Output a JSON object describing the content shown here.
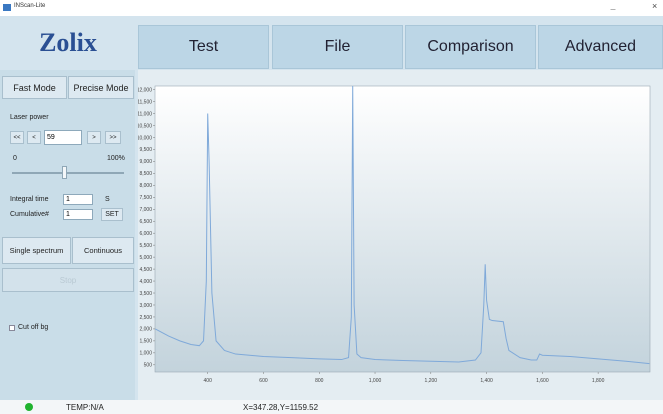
{
  "window": {
    "title": "INScan-Lite"
  },
  "logo": "Zolix",
  "tabs": [
    "Test",
    "File",
    "Comparison",
    "Advanced"
  ],
  "sidebar": {
    "modes": [
      "Fast Mode",
      "Precise Mode"
    ],
    "laser_power": {
      "label": "Laser power",
      "buttons": [
        "<<",
        "<",
        ">",
        ">>"
      ],
      "value": 59,
      "min_label": "0",
      "max_label": "100%"
    },
    "integral_time": {
      "label": "Integral time",
      "value": 1,
      "unit": "S"
    },
    "cumulative": {
      "label": "Cumulative#",
      "value": 1,
      "button": "SET"
    },
    "acquire": [
      "Single spectrum",
      "Continuous"
    ],
    "stop": "Stop",
    "cut_off_bg": "Cut off bg"
  },
  "status": {
    "temp": "TEMP:N/A",
    "cursor": "X=347.28,Y=1159.52"
  },
  "chart_data": {
    "type": "line",
    "color": "#7fa9d9",
    "x": [
      212,
      260,
      300,
      340,
      370,
      385,
      395,
      400,
      405,
      415,
      430,
      460,
      500,
      600,
      700,
      800,
      880,
      905,
      915,
      920,
      925,
      935,
      950,
      1000,
      1100,
      1200,
      1300,
      1360,
      1380,
      1390,
      1395,
      1400,
      1410,
      1420,
      1460,
      1470,
      1480,
      1520,
      1560,
      1580,
      1590,
      1600,
      1700,
      1800,
      1900,
      1984
    ],
    "values": [
      2000,
      1700,
      1500,
      1350,
      1300,
      1500,
      4000,
      11000,
      9000,
      3500,
      1500,
      1100,
      950,
      850,
      800,
      750,
      720,
      800,
      2500,
      12150,
      3000,
      950,
      800,
      720,
      680,
      650,
      620,
      700,
      1000,
      3000,
      4700,
      3200,
      2400,
      2350,
      2300,
      1600,
      1100,
      800,
      700,
      700,
      950,
      900,
      850,
      750,
      650,
      550
    ],
    "xlim": [
      211,
      1986
    ],
    "ylim": [
      200,
      12150
    ],
    "xticks": [
      400,
      600,
      800,
      {
        "value": 1000,
        "label": "1,000"
      },
      {
        "value": 1200,
        "label": "1,200"
      },
      {
        "value": 1400,
        "label": "1,400"
      },
      {
        "value": 1600,
        "label": "1,600"
      },
      {
        "value": 1800,
        "label": "1,800"
      }
    ],
    "yticks": [
      500,
      {
        "value": 1000,
        "label": "1,000"
      },
      {
        "value": 1500,
        "label": "1,500"
      },
      {
        "value": 2000,
        "label": "2,000"
      },
      {
        "value": 2500,
        "label": "2,500"
      },
      {
        "value": 3000,
        "label": "3,000"
      },
      {
        "value": 3500,
        "label": "3,500"
      },
      {
        "value": 4000,
        "label": "4,000"
      },
      {
        "value": 4500,
        "label": "4,500"
      },
      {
        "value": 5000,
        "label": "5,000"
      },
      {
        "value": 5500,
        "label": "5,500"
      },
      {
        "value": 6000,
        "label": "6,000"
      },
      {
        "value": 6500,
        "label": "6,500"
      },
      {
        "value": 7000,
        "label": "7,000"
      },
      {
        "value": 7500,
        "label": "7,500"
      },
      {
        "value": 8000,
        "label": "8,000"
      },
      {
        "value": 8500,
        "label": "8,500"
      },
      {
        "value": 9000,
        "label": "9,000"
      },
      {
        "value": 9500,
        "label": "9,500"
      },
      {
        "value": 10000,
        "label": "10,000"
      },
      {
        "value": 10500,
        "label": "10,500"
      },
      {
        "value": 11000,
        "label": "11,000"
      },
      {
        "value": 11500,
        "label": "11,500"
      },
      {
        "value": 12000,
        "label": "12,000"
      }
    ]
  }
}
